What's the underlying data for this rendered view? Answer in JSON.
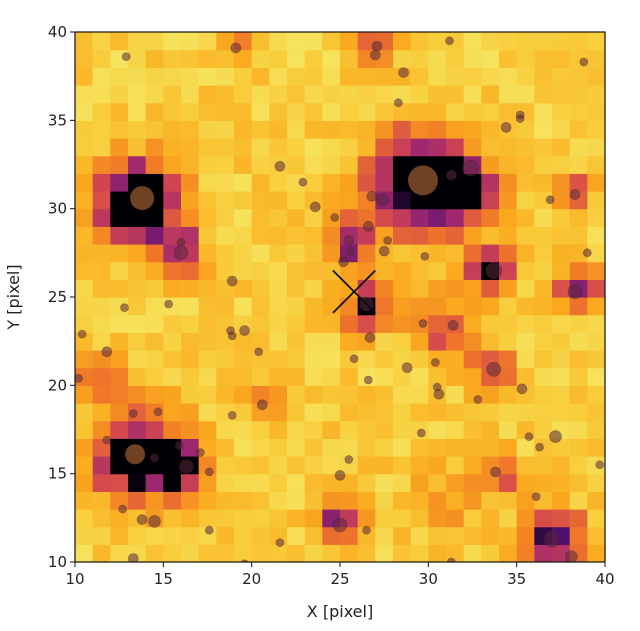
{
  "chart_data": {
    "type": "heatmap",
    "title": "",
    "xlabel": "X [pixel]",
    "ylabel": "Y [pixel]",
    "xlim": [
      10,
      40
    ],
    "ylim": [
      10,
      40
    ],
    "xticks": [
      10,
      15,
      20,
      25,
      30,
      35,
      40
    ],
    "yticks": [
      10,
      15,
      20,
      25,
      30,
      35,
      40
    ],
    "grid": false,
    "colormap": "inferno (bright end)",
    "image_grid": {
      "nx": 30,
      "ny": 30,
      "x0": 10,
      "y0": 10,
      "cell": 1
    },
    "hot_spots": [
      {
        "x": 13.5,
        "y": 30.5,
        "strength": 1.0,
        "radius": 1.6
      },
      {
        "x": 29.5,
        "y": 31.5,
        "strength": 1.0,
        "radius": 2.0
      },
      {
        "x": 13.5,
        "y": 16.0,
        "strength": 0.85,
        "radius": 1.8
      },
      {
        "x": 16.0,
        "y": 27.5,
        "strength": 0.6,
        "radius": 1.0
      },
      {
        "x": 33.5,
        "y": 26.5,
        "strength": 0.7,
        "radius": 1.0
      },
      {
        "x": 26.5,
        "y": 24.5,
        "strength": 0.6,
        "radius": 1.0
      },
      {
        "x": 38.5,
        "y": 25.5,
        "strength": 0.55,
        "radius": 1.0
      },
      {
        "x": 32.5,
        "y": 31.0,
        "strength": 0.6,
        "radius": 1.2
      },
      {
        "x": 25.0,
        "y": 12.5,
        "strength": 0.6,
        "radius": 1.0
      },
      {
        "x": 16.0,
        "y": 15.5,
        "strength": 0.55,
        "radius": 1.0
      },
      {
        "x": 37.0,
        "y": 11.5,
        "strength": 0.75,
        "radius": 1.2
      },
      {
        "x": 33.5,
        "y": 21.0,
        "strength": 0.5,
        "radius": 0.9
      },
      {
        "x": 30.5,
        "y": 23.5,
        "strength": 0.45,
        "radius": 1.2
      },
      {
        "x": 21.0,
        "y": 19.0,
        "strength": 0.45,
        "radius": 0.8
      },
      {
        "x": 38.0,
        "y": 31.0,
        "strength": 0.45,
        "radius": 0.8
      },
      {
        "x": 25.5,
        "y": 28.0,
        "strength": 0.55,
        "radius": 1.0
      },
      {
        "x": 11.5,
        "y": 20.5,
        "strength": 0.35,
        "radius": 1.0
      },
      {
        "x": 34.0,
        "y": 15.0,
        "strength": 0.45,
        "radius": 0.8
      },
      {
        "x": 19.0,
        "y": 39.5,
        "strength": 0.35,
        "radius": 0.7
      },
      {
        "x": 27.0,
        "y": 39.0,
        "strength": 0.4,
        "radius": 0.8
      },
      {
        "x": 31.0,
        "y": 13.5,
        "strength": 0.2,
        "radius": 1.5
      }
    ],
    "marker": {
      "type": "x",
      "x": 25.8,
      "y": 25.3,
      "size": 1.2,
      "color": "#111111"
    },
    "points": [
      {
        "x": 12.9,
        "y": 38.6,
        "size": 4
      },
      {
        "x": 19.1,
        "y": 39.1,
        "size": 5
      },
      {
        "x": 27.1,
        "y": 39.2,
        "size": 5
      },
      {
        "x": 27.0,
        "y": 38.7,
        "size": 5
      },
      {
        "x": 31.2,
        "y": 39.5,
        "size": 4
      },
      {
        "x": 38.8,
        "y": 38.3,
        "size": 4
      },
      {
        "x": 28.6,
        "y": 37.7,
        "size": 5
      },
      {
        "x": 28.3,
        "y": 36.0,
        "size": 4
      },
      {
        "x": 35.2,
        "y": 35.3,
        "size": 4
      },
      {
        "x": 35.2,
        "y": 35.1,
        "size": 4
      },
      {
        "x": 34.4,
        "y": 34.6,
        "size": 5
      },
      {
        "x": 13.8,
        "y": 30.6,
        "size": 12
      },
      {
        "x": 29.7,
        "y": 31.6,
        "size": 15
      },
      {
        "x": 31.3,
        "y": 31.9,
        "size": 5
      },
      {
        "x": 32.4,
        "y": 32.3,
        "size": 8
      },
      {
        "x": 21.6,
        "y": 32.4,
        "size": 5
      },
      {
        "x": 22.9,
        "y": 31.5,
        "size": 4
      },
      {
        "x": 23.6,
        "y": 30.1,
        "size": 5
      },
      {
        "x": 24.7,
        "y": 29.5,
        "size": 4
      },
      {
        "x": 26.8,
        "y": 30.7,
        "size": 5
      },
      {
        "x": 27.4,
        "y": 30.5,
        "size": 6
      },
      {
        "x": 26.6,
        "y": 29.0,
        "size": 5
      },
      {
        "x": 25.5,
        "y": 28.2,
        "size": 5
      },
      {
        "x": 25.6,
        "y": 27.6,
        "size": 4
      },
      {
        "x": 25.2,
        "y": 27.0,
        "size": 5
      },
      {
        "x": 27.7,
        "y": 28.2,
        "size": 4
      },
      {
        "x": 27.5,
        "y": 27.6,
        "size": 5
      },
      {
        "x": 29.8,
        "y": 27.3,
        "size": 4
      },
      {
        "x": 16.0,
        "y": 28.1,
        "size": 4
      },
      {
        "x": 16.0,
        "y": 27.5,
        "size": 7
      },
      {
        "x": 18.9,
        "y": 25.9,
        "size": 5
      },
      {
        "x": 33.7,
        "y": 26.5,
        "size": 8
      },
      {
        "x": 36.9,
        "y": 30.5,
        "size": 4
      },
      {
        "x": 38.3,
        "y": 30.8,
        "size": 5
      },
      {
        "x": 39.0,
        "y": 27.5,
        "size": 4
      },
      {
        "x": 38.3,
        "y": 25.3,
        "size": 7
      },
      {
        "x": 15.3,
        "y": 24.6,
        "size": 4
      },
      {
        "x": 12.8,
        "y": 24.4,
        "size": 4
      },
      {
        "x": 26.5,
        "y": 24.6,
        "size": 7
      },
      {
        "x": 26.7,
        "y": 22.7,
        "size": 5
      },
      {
        "x": 29.7,
        "y": 23.5,
        "size": 4
      },
      {
        "x": 31.4,
        "y": 23.4,
        "size": 5
      },
      {
        "x": 10.4,
        "y": 22.9,
        "size": 4
      },
      {
        "x": 11.8,
        "y": 21.9,
        "size": 5
      },
      {
        "x": 18.8,
        "y": 23.1,
        "size": 4
      },
      {
        "x": 18.9,
        "y": 22.8,
        "size": 4
      },
      {
        "x": 19.6,
        "y": 23.1,
        "size": 5
      },
      {
        "x": 20.4,
        "y": 21.9,
        "size": 4
      },
      {
        "x": 25.8,
        "y": 21.5,
        "size": 4
      },
      {
        "x": 26.6,
        "y": 20.3,
        "size": 4
      },
      {
        "x": 28.8,
        "y": 21.0,
        "size": 5
      },
      {
        "x": 30.4,
        "y": 21.3,
        "size": 4
      },
      {
        "x": 30.5,
        "y": 19.9,
        "size": 4
      },
      {
        "x": 30.6,
        "y": 19.5,
        "size": 5
      },
      {
        "x": 32.8,
        "y": 19.2,
        "size": 4
      },
      {
        "x": 33.7,
        "y": 20.9,
        "size": 7
      },
      {
        "x": 35.3,
        "y": 19.8,
        "size": 5
      },
      {
        "x": 10.2,
        "y": 20.4,
        "size": 4
      },
      {
        "x": 13.3,
        "y": 18.4,
        "size": 4
      },
      {
        "x": 14.7,
        "y": 18.5,
        "size": 4
      },
      {
        "x": 18.9,
        "y": 18.3,
        "size": 4
      },
      {
        "x": 20.6,
        "y": 18.9,
        "size": 5
      },
      {
        "x": 11.8,
        "y": 16.9,
        "size": 4
      },
      {
        "x": 13.4,
        "y": 16.1,
        "size": 10
      },
      {
        "x": 14.5,
        "y": 15.9,
        "size": 4
      },
      {
        "x": 15.9,
        "y": 16.6,
        "size": 4
      },
      {
        "x": 16.3,
        "y": 15.4,
        "size": 7
      },
      {
        "x": 17.1,
        "y": 16.2,
        "size": 4
      },
      {
        "x": 17.6,
        "y": 15.1,
        "size": 4
      },
      {
        "x": 25.5,
        "y": 15.8,
        "size": 4
      },
      {
        "x": 25.0,
        "y": 14.9,
        "size": 5
      },
      {
        "x": 29.6,
        "y": 17.3,
        "size": 4
      },
      {
        "x": 35.7,
        "y": 17.1,
        "size": 4
      },
      {
        "x": 36.3,
        "y": 16.5,
        "size": 4
      },
      {
        "x": 37.2,
        "y": 17.1,
        "size": 6
      },
      {
        "x": 39.7,
        "y": 15.5,
        "size": 4
      },
      {
        "x": 33.8,
        "y": 15.1,
        "size": 5
      },
      {
        "x": 36.1,
        "y": 13.7,
        "size": 4
      },
      {
        "x": 12.7,
        "y": 13.0,
        "size": 4
      },
      {
        "x": 13.8,
        "y": 12.4,
        "size": 5
      },
      {
        "x": 14.5,
        "y": 12.3,
        "size": 6
      },
      {
        "x": 17.6,
        "y": 11.8,
        "size": 4
      },
      {
        "x": 21.6,
        "y": 11.1,
        "size": 4
      },
      {
        "x": 25.0,
        "y": 12.1,
        "size": 7
      },
      {
        "x": 26.5,
        "y": 11.8,
        "size": 4
      },
      {
        "x": 37.0,
        "y": 11.3,
        "size": 8
      },
      {
        "x": 13.3,
        "y": 10.2,
        "size": 5
      },
      {
        "x": 19.6,
        "y": 9.9,
        "size": 4
      },
      {
        "x": 31.3,
        "y": 10.0,
        "size": 4
      },
      {
        "x": 38.1,
        "y": 10.3,
        "size": 6
      }
    ],
    "point_color": "rgba(90,40,60,0.55)"
  }
}
